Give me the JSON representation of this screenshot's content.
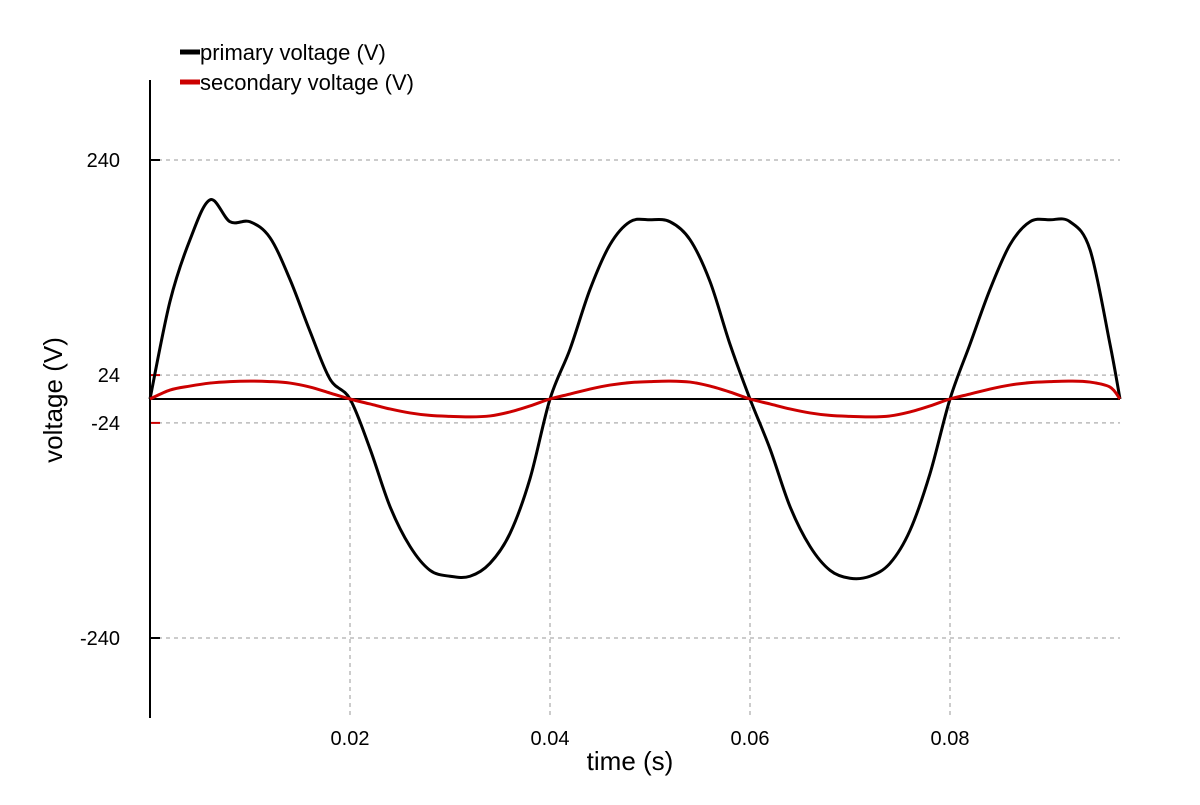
{
  "chart_data": {
    "type": "line",
    "title": "",
    "xlabel": "time (s)",
    "ylabel": "voltage (V)",
    "xlim": [
      0,
      0.097
    ],
    "ylim": [
      -320,
      320
    ],
    "x_ticks": [
      0.02,
      0.04,
      0.06,
      0.08
    ],
    "x_tick_labels": [
      "0.02",
      "0.04",
      "0.06",
      "0.08"
    ],
    "y_ticks": [
      240,
      24,
      -24,
      -240
    ],
    "y_tick_labels": [
      "240",
      "24",
      "-24",
      "-240"
    ],
    "y_tick_colors": [
      "#000000",
      "#cc0000",
      "#cc0000",
      "#000000"
    ],
    "grid": "dashed at ticks",
    "legend_position": "top-left",
    "series": [
      {
        "name": "primary voltage (V)",
        "color": "#000000",
        "x": [
          0,
          0.002,
          0.004,
          0.006,
          0.008,
          0.01,
          0.012,
          0.014,
          0.016,
          0.018,
          0.02,
          0.022,
          0.024,
          0.026,
          0.028,
          0.03,
          0.032,
          0.034,
          0.036,
          0.038,
          0.04,
          0.042,
          0.044,
          0.046,
          0.048,
          0.05,
          0.052,
          0.054,
          0.056,
          0.058,
          0.06,
          0.062,
          0.064,
          0.066,
          0.068,
          0.07,
          0.072,
          0.074,
          0.076,
          0.078,
          0.08,
          0.082,
          0.084,
          0.086,
          0.088,
          0.09,
          0.092,
          0.094,
          0.096,
          0.097
        ],
        "values": [
          0,
          98,
          160,
          200,
          178,
          178,
          162,
          120,
          68,
          20,
          0,
          -50,
          -108,
          -148,
          -172,
          -178,
          -178,
          -165,
          -135,
          -80,
          0,
          50,
          110,
          155,
          178,
          180,
          178,
          160,
          118,
          55,
          0,
          -50,
          -108,
          -148,
          -172,
          -180,
          -178,
          -165,
          -132,
          -75,
          0,
          55,
          110,
          155,
          178,
          180,
          178,
          150,
          55,
          0
        ]
      },
      {
        "name": "secondary voltage (V)",
        "color": "#cc0000",
        "x": [
          0,
          0.002,
          0.004,
          0.006,
          0.008,
          0.01,
          0.012,
          0.014,
          0.016,
          0.018,
          0.02,
          0.022,
          0.024,
          0.026,
          0.028,
          0.03,
          0.032,
          0.034,
          0.036,
          0.038,
          0.04,
          0.042,
          0.044,
          0.046,
          0.048,
          0.05,
          0.052,
          0.054,
          0.056,
          0.058,
          0.06,
          0.062,
          0.064,
          0.066,
          0.068,
          0.07,
          0.072,
          0.074,
          0.076,
          0.078,
          0.08,
          0.082,
          0.084,
          0.086,
          0.088,
          0.09,
          0.092,
          0.094,
          0.096,
          0.097
        ],
        "values": [
          0,
          9,
          13,
          16,
          17.5,
          18,
          17.5,
          16,
          12,
          6,
          0,
          -5,
          -10,
          -14,
          -16.5,
          -17.5,
          -18,
          -17,
          -13,
          -7,
          0,
          5,
          10,
          14,
          16.5,
          17.5,
          18,
          17,
          13,
          7,
          0,
          -5,
          -10,
          -14,
          -16.5,
          -17.5,
          -18,
          -17,
          -13,
          -7,
          0,
          5,
          10,
          14,
          16.5,
          17.5,
          18,
          17,
          12,
          0
        ]
      }
    ]
  }
}
